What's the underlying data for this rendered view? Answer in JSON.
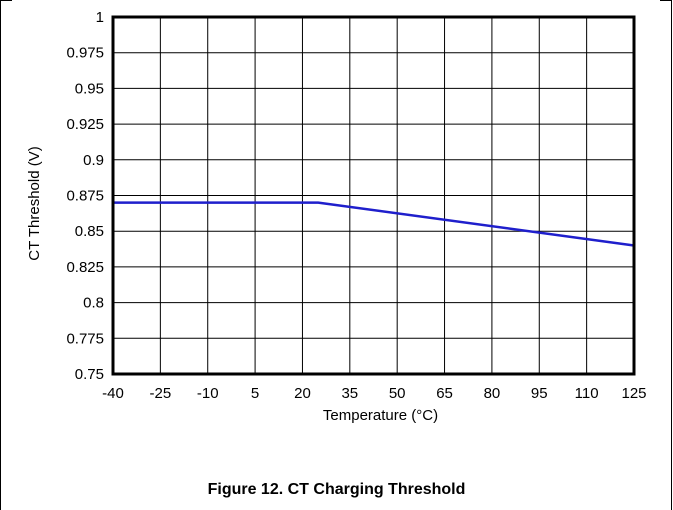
{
  "caption": "Figure 12. CT Charging Threshold",
  "chart_data": {
    "type": "line",
    "xlabel": "Temperature (°C)",
    "ylabel": "CT Threshold (V)",
    "x_ticks": [
      "-40",
      "-25",
      "-10",
      "5",
      "20",
      "35",
      "50",
      "65",
      "80",
      "95",
      "110",
      "125"
    ],
    "y_ticks": [
      "0.75",
      "0.775",
      "0.8",
      "0.825",
      "0.85",
      "0.875",
      "0.9",
      "0.925",
      "0.95",
      "0.975",
      "1"
    ],
    "xlim": [
      -40,
      125
    ],
    "ylim": [
      0.75,
      1
    ],
    "grid": true,
    "series": [
      {
        "color": "#1f1fcc",
        "x": [
          -40,
          25,
          125
        ],
        "y": [
          0.87,
          0.87,
          0.84
        ]
      }
    ]
  }
}
